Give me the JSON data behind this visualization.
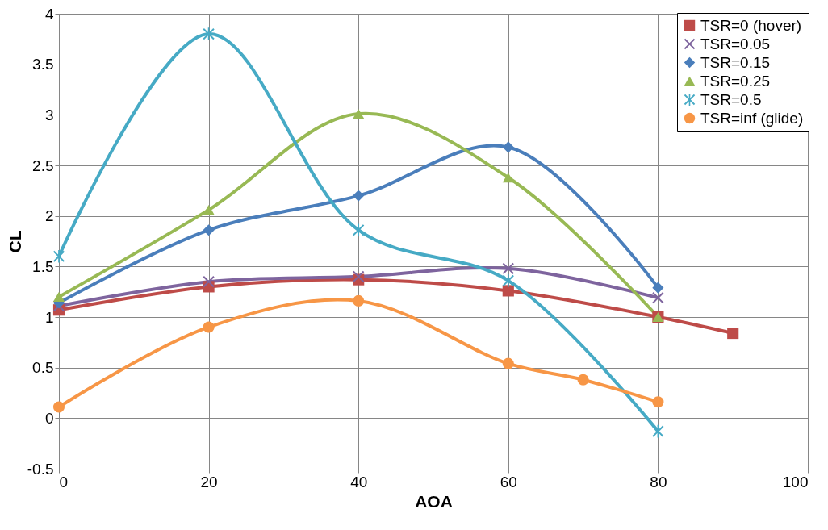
{
  "chart_data": {
    "type": "line",
    "xlabel": "AOA",
    "ylabel": "CL",
    "xlim": [
      0,
      100
    ],
    "xticks": [
      0,
      20,
      40,
      60,
      80,
      100
    ],
    "ylim": [
      -0.5,
      4
    ],
    "yticks": [
      -0.5,
      0,
      0.5,
      1,
      1.5,
      2,
      2.5,
      3,
      3.5,
      4
    ],
    "grid": true,
    "legend": "top right",
    "series": [
      {
        "name": "TSR=0 (hover)",
        "color": "#be4b48",
        "marker": "square",
        "x": [
          0,
          20,
          40,
          60,
          80,
          90
        ],
        "values": [
          1.07,
          1.3,
          1.37,
          1.26,
          1.0,
          0.84
        ]
      },
      {
        "name": "TSR=0.05",
        "color": "#7e649e",
        "marker": "cross",
        "x": [
          0,
          20,
          40,
          60,
          80
        ],
        "values": [
          1.11,
          1.35,
          1.4,
          1.48,
          1.19
        ]
      },
      {
        "name": "TSR=0.15",
        "color": "#4a7ebb",
        "marker": "diamond",
        "x": [
          0,
          20,
          40,
          60,
          80
        ],
        "values": [
          1.14,
          1.86,
          2.2,
          2.68,
          1.29
        ]
      },
      {
        "name": "TSR=0.25",
        "color": "#98b954",
        "marker": "triangle",
        "x": [
          0,
          20,
          40,
          60,
          80
        ],
        "values": [
          1.2,
          2.06,
          3.01,
          2.38,
          1.0
        ]
      },
      {
        "name": "TSR=0.5",
        "color": "#46aac5",
        "marker": "star",
        "x": [
          0,
          20,
          40,
          60,
          80
        ],
        "values": [
          1.6,
          3.8,
          1.86,
          1.36,
          -0.13
        ]
      },
      {
        "name": "TSR=inf (glide)",
        "color": "#f79646",
        "marker": "circle",
        "x": [
          0,
          20,
          40,
          60,
          70,
          80
        ],
        "values": [
          0.11,
          0.9,
          1.16,
          0.54,
          0.38,
          0.16
        ]
      }
    ]
  }
}
